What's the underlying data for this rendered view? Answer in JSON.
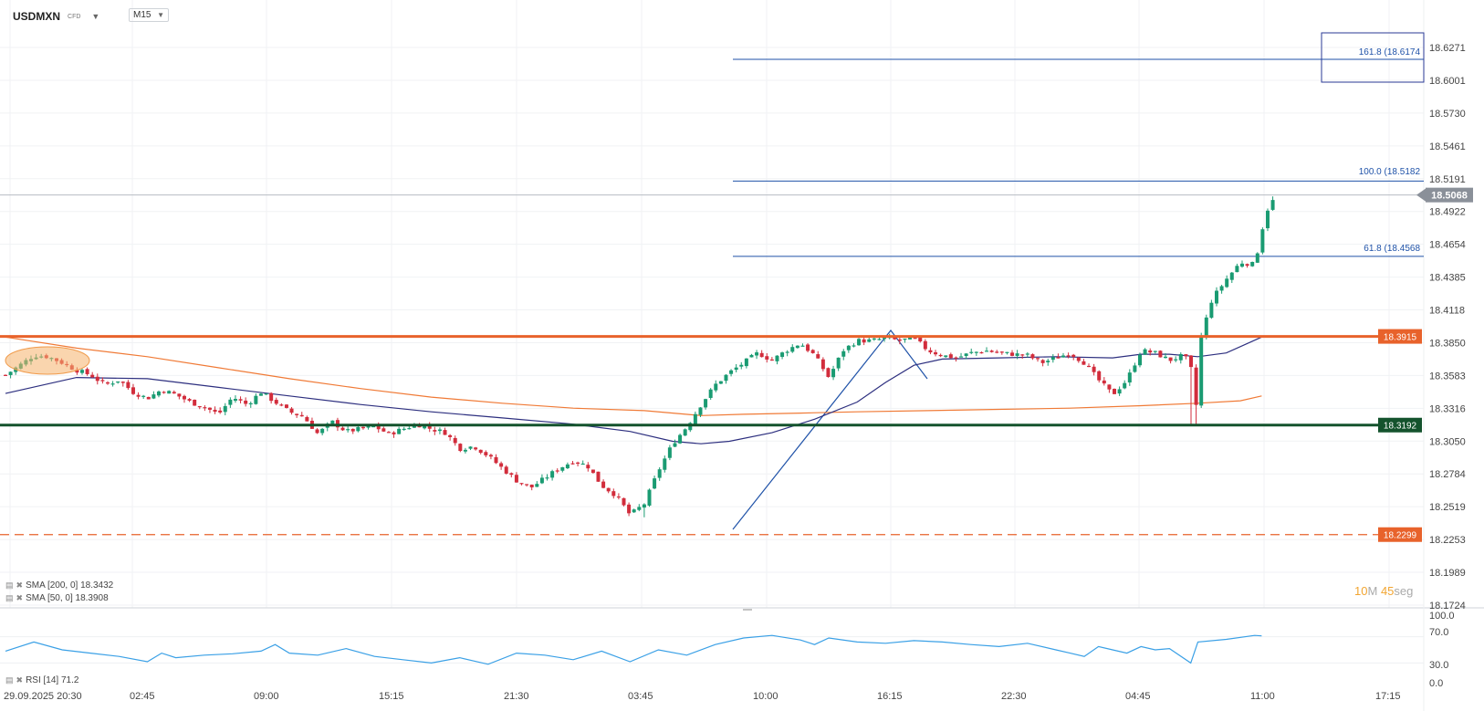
{
  "header": {
    "symbol": "USDMXN",
    "symbol_type": "CFD",
    "symbol_caret": "▼",
    "timeframe": "M15",
    "timeframe_caret": "▼"
  },
  "indicators": {
    "sma200_label": "SMA [200, 0] 18.3432",
    "sma50_label": "SMA [50, 0] 18.3908",
    "rsi_label": "RSI [14] 71.2"
  },
  "countdown": {
    "minutes": "10",
    "m_unit": "M",
    "seconds": "45",
    "s_unit": "seg"
  },
  "price_axis": [
    "18.6271",
    "18.6001",
    "18.5730",
    "18.5461",
    "18.5191",
    "18.4922",
    "18.4654",
    "18.4385",
    "18.4118",
    "18.3850",
    "18.3583",
    "18.3316",
    "18.3050",
    "18.2784",
    "18.2519",
    "18.2253",
    "18.1989",
    "18.1724"
  ],
  "rsi_axis": [
    "100.0",
    "70.0",
    "30.0",
    "0.0"
  ],
  "time_axis": [
    "29.09.2025  20:30",
    "02:45",
    "09:00",
    "15:15",
    "21:30",
    "03:45",
    "10:00",
    "16:15",
    "22:30",
    "04:45",
    "11:00",
    "17:15"
  ],
  "levels": {
    "resistance": {
      "label": "18.3915",
      "value": 18.3915,
      "color": "#e8622b"
    },
    "support": {
      "label": "18.3192",
      "value": 18.3192,
      "color": "#14532d"
    },
    "lower": {
      "label": "18.2299",
      "value": 18.2299,
      "color": "#e8622b"
    },
    "current": {
      "label": "18.5068",
      "value": 18.5068,
      "color": "#8a9099"
    }
  },
  "fib_labels": [
    {
      "label": "161.8 (18.6174",
      "value": 18.6174
    },
    {
      "label": "100.0 (18.5182",
      "value": 18.5182
    },
    {
      "label": "61.8 (18.4568",
      "value": 18.4568
    }
  ],
  "colors": {
    "up": "#1a9b72",
    "down": "#d22d3c",
    "sma50": "#2d2f7f",
    "sma200": "#f07a36",
    "rsi": "#3aa0e6",
    "fib": "#1f52a8"
  },
  "chart_data": {
    "type": "candlestick",
    "symbol": "USDMXN",
    "timeframe": "M15",
    "ylim": [
      18.1724,
      18.6271
    ],
    "series": [
      {
        "name": "Price",
        "kind": "line",
        "values": [
          [
            0,
            18.36
          ],
          [
            10,
            18.368
          ],
          [
            20,
            18.376
          ],
          [
            30,
            18.375
          ],
          [
            40,
            18.37
          ],
          [
            50,
            18.364
          ],
          [
            60,
            18.36
          ],
          [
            70,
            18.352
          ],
          [
            80,
            18.356
          ],
          [
            90,
            18.346
          ],
          [
            100,
            18.341
          ],
          [
            110,
            18.348
          ],
          [
            120,
            18.344
          ],
          [
            130,
            18.338
          ],
          [
            140,
            18.334
          ],
          [
            150,
            18.328
          ],
          [
            160,
            18.342
          ],
          [
            170,
            18.336
          ],
          [
            180,
            18.346
          ],
          [
            190,
            18.338
          ],
          [
            200,
            18.33
          ],
          [
            210,
            18.326
          ],
          [
            220,
            18.312
          ],
          [
            230,
            18.322
          ],
          [
            240,
            18.314
          ],
          [
            250,
            18.316
          ],
          [
            260,
            18.318
          ],
          [
            270,
            18.312
          ],
          [
            280,
            18.316
          ],
          [
            290,
            18.32
          ],
          [
            300,
            18.316
          ],
          [
            310,
            18.313
          ],
          [
            320,
            18.3
          ],
          [
            330,
            18.302
          ],
          [
            340,
            18.294
          ],
          [
            350,
            18.284
          ],
          [
            360,
            18.274
          ],
          [
            370,
            18.268
          ],
          [
            380,
            18.276
          ],
          [
            390,
            18.284
          ],
          [
            400,
            18.29
          ],
          [
            410,
            18.286
          ],
          [
            420,
            18.27
          ],
          [
            430,
            18.262
          ],
          [
            440,
            18.246
          ],
          [
            450,
            18.255
          ],
          [
            460,
            18.282
          ],
          [
            470,
            18.304
          ],
          [
            480,
            18.318
          ],
          [
            490,
            18.336
          ],
          [
            500,
            18.352
          ],
          [
            510,
            18.362
          ],
          [
            520,
            18.37
          ],
          [
            530,
            18.378
          ],
          [
            540,
            18.372
          ],
          [
            550,
            18.38
          ],
          [
            560,
            18.386
          ],
          [
            570,
            18.376
          ],
          [
            580,
            18.358
          ],
          [
            590,
            18.38
          ],
          [
            600,
            18.388
          ],
          [
            610,
            18.388
          ],
          [
            620,
            18.39
          ],
          [
            630,
            18.388
          ],
          [
            640,
            18.39
          ],
          [
            650,
            18.38
          ],
          [
            660,
            18.376
          ],
          [
            670,
            18.374
          ],
          [
            680,
            18.378
          ],
          [
            690,
            18.38
          ],
          [
            700,
            18.378
          ],
          [
            710,
            18.377
          ],
          [
            720,
            18.376
          ],
          [
            730,
            18.37
          ],
          [
            740,
            18.374
          ],
          [
            750,
            18.378
          ],
          [
            760,
            18.37
          ],
          [
            770,
            18.356
          ],
          [
            780,
            18.344
          ],
          [
            790,
            18.356
          ],
          [
            800,
            18.38
          ],
          [
            810,
            18.378
          ],
          [
            820,
            18.372
          ],
          [
            830,
            18.376
          ],
          [
            835,
            18.368
          ],
          [
            838,
            18.322
          ],
          [
            842,
            18.39
          ],
          [
            850,
            18.422
          ],
          [
            860,
            18.438
          ],
          [
            870,
            18.452
          ],
          [
            880,
            18.45
          ],
          [
            888,
            18.493
          ],
          [
            895,
            18.506
          ]
        ]
      },
      {
        "name": "SMA 50",
        "values": [
          [
            0,
            18.345
          ],
          [
            50,
            18.358
          ],
          [
            100,
            18.357
          ],
          [
            150,
            18.35
          ],
          [
            200,
            18.343
          ],
          [
            250,
            18.336
          ],
          [
            300,
            18.33
          ],
          [
            350,
            18.325
          ],
          [
            400,
            18.32
          ],
          [
            440,
            18.314
          ],
          [
            470,
            18.306
          ],
          [
            490,
            18.304
          ],
          [
            510,
            18.306
          ],
          [
            540,
            18.313
          ],
          [
            570,
            18.324
          ],
          [
            600,
            18.338
          ],
          [
            620,
            18.354
          ],
          [
            640,
            18.368
          ],
          [
            660,
            18.373
          ],
          [
            700,
            18.374
          ],
          [
            740,
            18.375
          ],
          [
            780,
            18.374
          ],
          [
            800,
            18.377
          ],
          [
            820,
            18.377
          ],
          [
            840,
            18.375
          ],
          [
            860,
            18.378
          ],
          [
            885,
            18.391
          ]
        ]
      },
      {
        "name": "SMA 200",
        "values": [
          [
            0,
            18.391
          ],
          [
            50,
            18.382
          ],
          [
            100,
            18.375
          ],
          [
            150,
            18.366
          ],
          [
            200,
            18.357
          ],
          [
            250,
            18.349
          ],
          [
            300,
            18.342
          ],
          [
            350,
            18.337
          ],
          [
            400,
            18.333
          ],
          [
            450,
            18.331
          ],
          [
            490,
            18.327
          ],
          [
            520,
            18.328
          ],
          [
            560,
            18.329
          ],
          [
            600,
            18.33
          ],
          [
            650,
            18.331
          ],
          [
            700,
            18.332
          ],
          [
            750,
            18.333
          ],
          [
            800,
            18.335
          ],
          [
            840,
            18.337
          ],
          [
            870,
            18.339
          ],
          [
            885,
            18.343
          ]
        ]
      },
      {
        "name": "RSI 14",
        "values": [
          [
            0,
            48
          ],
          [
            20,
            62
          ],
          [
            40,
            50
          ],
          [
            60,
            45
          ],
          [
            80,
            40
          ],
          [
            100,
            32
          ],
          [
            110,
            45
          ],
          [
            120,
            38
          ],
          [
            140,
            42
          ],
          [
            160,
            44
          ],
          [
            180,
            48
          ],
          [
            190,
            58
          ],
          [
            200,
            45
          ],
          [
            220,
            42
          ],
          [
            240,
            52
          ],
          [
            260,
            40
          ],
          [
            280,
            35
          ],
          [
            300,
            30
          ],
          [
            320,
            38
          ],
          [
            340,
            28
          ],
          [
            360,
            45
          ],
          [
            380,
            42
          ],
          [
            400,
            35
          ],
          [
            420,
            48
          ],
          [
            440,
            32
          ],
          [
            460,
            50
          ],
          [
            480,
            42
          ],
          [
            500,
            58
          ],
          [
            520,
            68
          ],
          [
            540,
            72
          ],
          [
            560,
            65
          ],
          [
            570,
            58
          ],
          [
            580,
            68
          ],
          [
            600,
            62
          ],
          [
            620,
            60
          ],
          [
            640,
            64
          ],
          [
            660,
            62
          ],
          [
            680,
            58
          ],
          [
            700,
            55
          ],
          [
            720,
            60
          ],
          [
            740,
            50
          ],
          [
            750,
            45
          ],
          [
            760,
            40
          ],
          [
            770,
            55
          ],
          [
            780,
            50
          ],
          [
            790,
            45
          ],
          [
            800,
            55
          ],
          [
            810,
            50
          ],
          [
            820,
            52
          ],
          [
            835,
            30
          ],
          [
            840,
            62
          ],
          [
            860,
            66
          ],
          [
            880,
            72
          ],
          [
            885,
            71.2
          ]
        ]
      }
    ],
    "fib_levels": [
      {
        "ratio": "161.8",
        "value": 18.6174
      },
      {
        "ratio": "100.0",
        "value": 18.5182
      },
      {
        "ratio": "61.8",
        "value": 18.4568
      }
    ],
    "horizontal_levels": [
      18.3915,
      18.3192,
      18.2299
    ],
    "last_price": 18.5068,
    "rsi_scale": [
      0,
      30,
      70,
      100
    ]
  }
}
